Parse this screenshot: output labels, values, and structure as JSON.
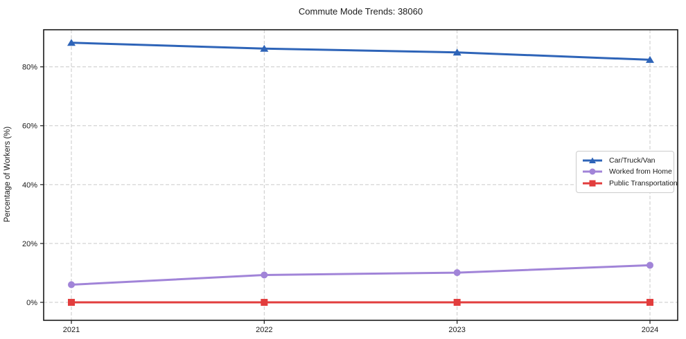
{
  "chart_data": {
    "type": "line",
    "title": "Commute Mode Trends: 38060",
    "xlabel": "",
    "ylabel": "Percentage of Workers (%)",
    "categories": [
      "2021",
      "2022",
      "2023",
      "2024"
    ],
    "series": [
      {
        "name": "Car/Truck/Van",
        "marker": "triangle",
        "color": "#2e64b8",
        "values": [
          88.2,
          86.2,
          84.9,
          82.4
        ]
      },
      {
        "name": "Worked from Home",
        "marker": "circle",
        "color": "#a184d8",
        "values": [
          6.0,
          9.3,
          10.1,
          12.6
        ]
      },
      {
        "name": "Public Transportation",
        "marker": "square",
        "color": "#e23d3d",
        "values": [
          0.0,
          0.0,
          0.0,
          0.0
        ]
      }
    ],
    "yticks": [
      0,
      20,
      40,
      60,
      80
    ],
    "ytick_labels": [
      "0%",
      "20%",
      "40%",
      "60%",
      "80%"
    ],
    "ylim": [
      -6.1,
      92.6
    ],
    "grid": true,
    "grid_color": "#c9c9c9",
    "spine_color": "#1a1a1a",
    "legend_position": "center right"
  }
}
